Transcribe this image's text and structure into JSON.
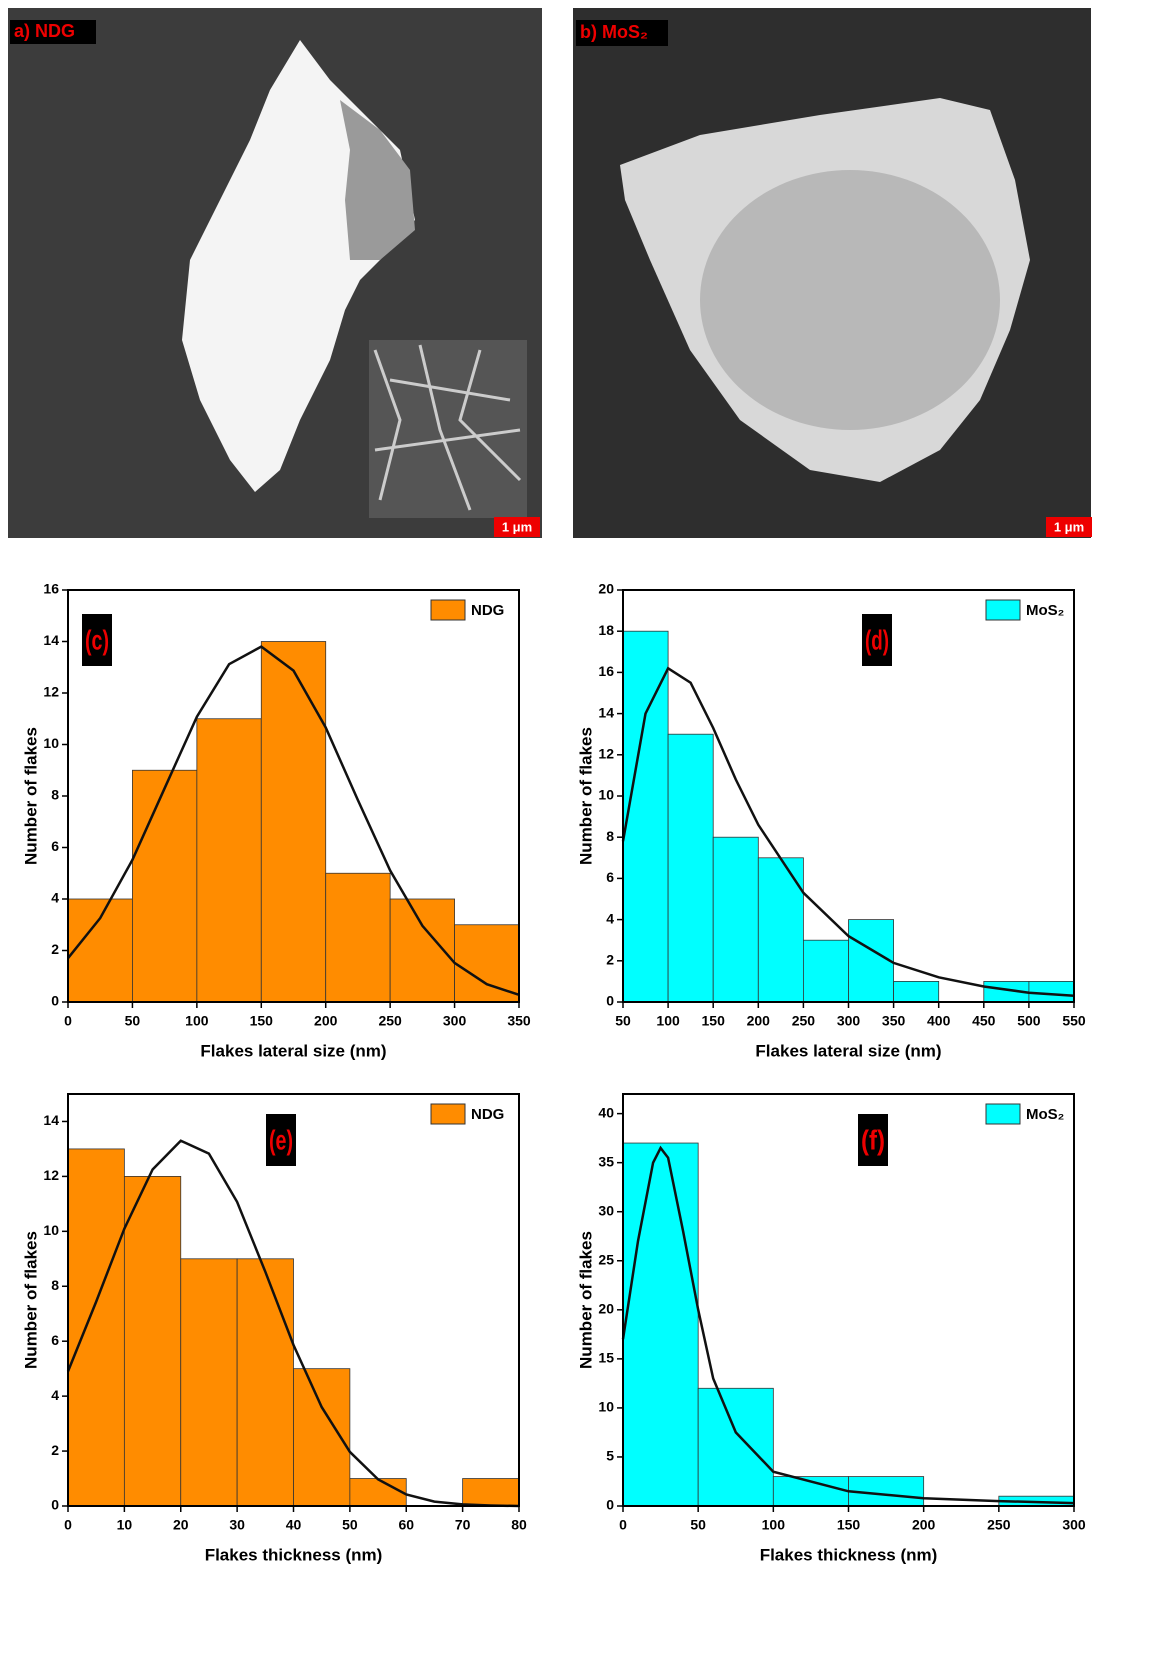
{
  "images": [
    {
      "label": "a) NDG",
      "scale_bar": "1 μm"
    },
    {
      "label": "b) MoS₂",
      "scale_bar": "1 μm"
    }
  ],
  "chart_data": [
    {
      "type": "histogram",
      "panel": "(c)",
      "legend": "NDG",
      "color": "#ff8c00",
      "xlabel": "Flakes lateral size (nm)",
      "ylabel": "Number of flakes",
      "bins": [
        0,
        50,
        100,
        150,
        200,
        250,
        300,
        350
      ],
      "values": [
        4,
        9,
        11,
        14,
        5,
        4,
        3
      ],
      "xlim": [
        0,
        350
      ],
      "ylim": [
        0,
        16
      ],
      "xticks": [
        0,
        50,
        100,
        150,
        200,
        250,
        300,
        350
      ],
      "yticks": [
        0,
        2,
        4,
        6,
        8,
        10,
        12,
        14,
        16
      ],
      "fit": {
        "x": [
          0,
          25,
          50,
          75,
          100,
          125,
          150,
          175,
          200,
          225,
          250,
          275,
          300,
          325,
          350
        ],
        "y": [
          1.7,
          3.26,
          5.52,
          8.3,
          11.08,
          13.12,
          13.8,
          12.87,
          10.66,
          7.84,
          5.11,
          2.96,
          1.52,
          0.69,
          0.28
        ]
      }
    },
    {
      "type": "histogram",
      "panel": "(d)",
      "legend": "MoS₂",
      "color": "#00ffff",
      "xlabel": "Flakes lateral size (nm)",
      "ylabel": "Number of flakes",
      "bins": [
        50,
        100,
        150,
        200,
        250,
        300,
        350,
        400,
        450,
        500,
        550
      ],
      "values": [
        18,
        13,
        8,
        7,
        3,
        4,
        1,
        0,
        1,
        1
      ],
      "xlim": [
        50,
        550
      ],
      "ylim": [
        0,
        20
      ],
      "xticks": [
        50,
        100,
        150,
        200,
        250,
        300,
        350,
        400,
        450,
        500,
        550
      ],
      "yticks": [
        0,
        2,
        4,
        6,
        8,
        10,
        12,
        14,
        16,
        18,
        20
      ],
      "fit": {
        "x": [
          50,
          75,
          100,
          125,
          150,
          175,
          200,
          250,
          300,
          350,
          400,
          450,
          500,
          550
        ],
        "y": [
          7.8,
          14,
          16.2,
          15.5,
          13.3,
          10.8,
          8.6,
          5.3,
          3.2,
          1.9,
          1.2,
          0.75,
          0.45,
          0.3
        ]
      }
    },
    {
      "type": "histogram",
      "panel": "(e)",
      "legend": "NDG",
      "color": "#ff8c00",
      "xlabel": "Flakes thickness (nm)",
      "ylabel": "Number of flakes",
      "bins": [
        0,
        10,
        20,
        30,
        40,
        50,
        60,
        70,
        80
      ],
      "values": [
        13,
        12,
        9,
        9,
        5,
        1,
        0,
        1
      ],
      "xlim": [
        0,
        80
      ],
      "ylim": [
        0,
        15
      ],
      "xticks": [
        0,
        10,
        20,
        30,
        40,
        50,
        60,
        70,
        80
      ],
      "yticks": [
        0,
        2,
        4,
        6,
        8,
        10,
        12,
        14
      ],
      "fit": {
        "x": [
          0,
          5,
          10,
          15,
          20,
          25,
          30,
          35,
          40,
          45,
          50,
          55,
          60,
          65,
          70,
          75,
          80
        ],
        "y": [
          4.9,
          7.44,
          10.1,
          12.25,
          13.3,
          12.83,
          11.07,
          8.53,
          5.86,
          3.6,
          1.97,
          0.97,
          0.42,
          0.16,
          0.06,
          0.02,
          0
        ]
      }
    },
    {
      "type": "histogram",
      "panel": "(f)",
      "legend": "MoS₂",
      "color": "#00ffff",
      "xlabel": "Flakes thickness (nm)",
      "ylabel": "Number of flakes",
      "bins": [
        0,
        50,
        100,
        150,
        200,
        250,
        300
      ],
      "values": [
        37,
        12,
        3,
        3,
        0,
        1
      ],
      "xlim": [
        0,
        300
      ],
      "ylim": [
        0,
        42
      ],
      "xticks": [
        0,
        50,
        100,
        150,
        200,
        250,
        300
      ],
      "yticks": [
        0,
        5,
        10,
        15,
        20,
        25,
        30,
        35,
        40
      ],
      "fit": {
        "x": [
          0,
          10,
          20,
          25,
          30,
          40,
          50,
          60,
          75,
          100,
          150,
          200,
          250,
          300
        ],
        "y": [
          17,
          27,
          35,
          36.5,
          35.5,
          28,
          20,
          13,
          7.5,
          3.5,
          1.5,
          0.8,
          0.5,
          0.3
        ]
      }
    }
  ]
}
